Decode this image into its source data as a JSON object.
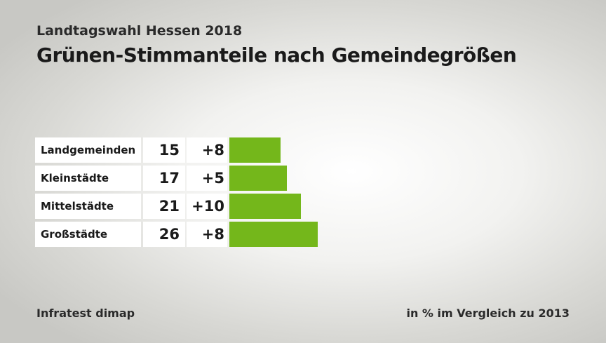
{
  "header": {
    "subtitle": "Landtagswahl Hessen 2018",
    "title": "Grünen-Stimmanteile nach Gemeindegrößen"
  },
  "footer": {
    "source": "Infratest dimap",
    "note": "in % im Vergleich zu 2013"
  },
  "colors": {
    "bar": "#74b71b"
  },
  "chart_data": {
    "type": "bar",
    "orientation": "horizontal",
    "categories": [
      "Landgemeinden",
      "Kleinstädte",
      "Mittelstädte",
      "Großstädte"
    ],
    "values": [
      15,
      17,
      21,
      26
    ],
    "value_labels": [
      "15",
      "17",
      "21",
      "26"
    ],
    "diff_labels": [
      "+8",
      "+5",
      "+10",
      "+8"
    ],
    "xlim": [
      0,
      26
    ]
  }
}
